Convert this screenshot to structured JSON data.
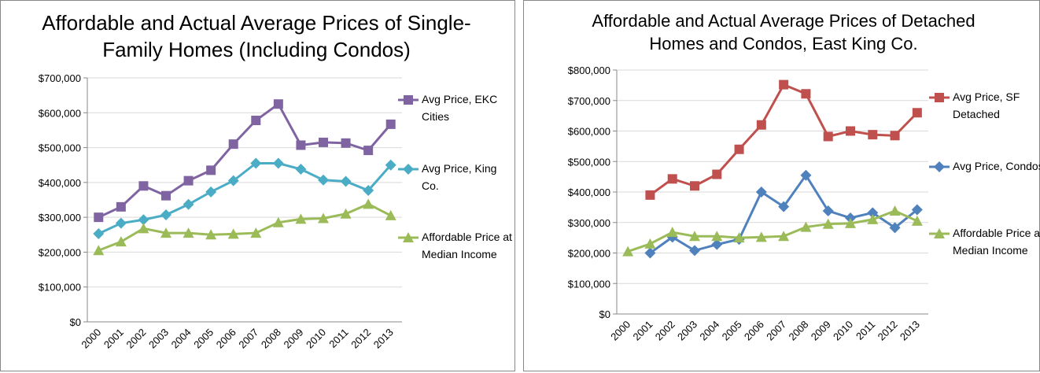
{
  "chart_data": [
    {
      "type": "line",
      "title": "Affordable and Actual Average Prices of Single-Family Homes (Including Condos)",
      "categories": [
        "2000",
        "2001",
        "2002",
        "2003",
        "2004",
        "2005",
        "2006",
        "2007",
        "2008",
        "2009",
        "2010",
        "2011",
        "2012",
        "2013"
      ],
      "ylim": [
        0,
        700000
      ],
      "yticks": [
        {
          "value": 0,
          "label": "$0"
        },
        {
          "value": 100000,
          "label": "$100,000"
        },
        {
          "value": 200000,
          "label": "$200,000"
        },
        {
          "value": 300000,
          "label": "$300,000"
        },
        {
          "value": 400000,
          "label": "$400,000"
        },
        {
          "value": 500000,
          "label": "$500,000"
        },
        {
          "value": 600000,
          "label": "$600,000"
        },
        {
          "value": 700000,
          "label": "$700,000"
        }
      ],
      "grid": true,
      "legend": "right",
      "series": [
        {
          "name": "Avg Price, EKC Cities",
          "color": "#8064a2",
          "marker": "square",
          "values": [
            300000,
            330000,
            390000,
            362000,
            405000,
            435000,
            510000,
            578000,
            625000,
            507000,
            515000,
            513000,
            492000,
            567000
          ]
        },
        {
          "name": "Avg Price, King Co.",
          "color": "#4bacc6",
          "marker": "diamond",
          "values": [
            253000,
            283000,
            293000,
            307000,
            337000,
            373000,
            405000,
            455000,
            455000,
            438000,
            407000,
            403000,
            377000,
            450000
          ]
        },
        {
          "name": "Affordable Price at Median Income",
          "color": "#9bbb59",
          "marker": "triangle",
          "values": [
            205000,
            230000,
            268000,
            255000,
            255000,
            250000,
            252000,
            255000,
            285000,
            295000,
            297000,
            310000,
            338000,
            305000
          ]
        }
      ]
    },
    {
      "type": "line",
      "title": "Affordable and Actual Average Prices of Detached Homes and Condos, East King Co.",
      "categories": [
        "2000",
        "2001",
        "2002",
        "2003",
        "2004",
        "2005",
        "2006",
        "2007",
        "2008",
        "2009",
        "2010",
        "2011",
        "2012",
        "2013"
      ],
      "ylim": [
        0,
        800000
      ],
      "yticks": [
        {
          "value": 0,
          "label": "$0"
        },
        {
          "value": 100000,
          "label": "$100,000"
        },
        {
          "value": 200000,
          "label": "$200,000"
        },
        {
          "value": 300000,
          "label": "$300,000"
        },
        {
          "value": 400000,
          "label": "$400,000"
        },
        {
          "value": 500000,
          "label": "$500,000"
        },
        {
          "value": 600000,
          "label": "$600,000"
        },
        {
          "value": 700000,
          "label": "$700,000"
        },
        {
          "value": 800000,
          "label": "$800,000"
        }
      ],
      "grid": true,
      "legend": "right",
      "series": [
        {
          "name": "Avg Price, SF Detached",
          "color": "#c0504d",
          "marker": "square",
          "values": [
            null,
            390000,
            443000,
            420000,
            458000,
            540000,
            620000,
            752000,
            722000,
            582000,
            600000,
            588000,
            585000,
            660000
          ]
        },
        {
          "name": "Avg Price, Condos",
          "color": "#4f81bd",
          "marker": "diamond",
          "values": [
            null,
            200000,
            252000,
            208000,
            228000,
            245000,
            400000,
            352000,
            455000,
            338000,
            315000,
            332000,
            283000,
            342000
          ]
        },
        {
          "name": "Affordable Price at Median Income",
          "color": "#9bbb59",
          "marker": "triangle",
          "values": [
            205000,
            230000,
            268000,
            255000,
            255000,
            250000,
            252000,
            255000,
            285000,
            295000,
            297000,
            310000,
            338000,
            305000
          ]
        }
      ]
    }
  ]
}
